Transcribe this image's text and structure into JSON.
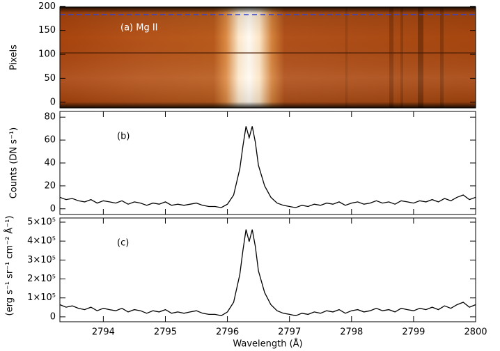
{
  "chart_data": [
    {
      "type": "image",
      "ylabel": "Pixels",
      "annotation": "(a) Mg II",
      "ylim": [
        -12,
        199
      ],
      "yticks": [
        0,
        50,
        100,
        150,
        200
      ],
      "reference_line": {
        "y": 183,
        "color": "#3344cc"
      }
    },
    {
      "type": "line",
      "ylabel": "Counts (DN s⁻¹)",
      "annotation": "(b)",
      "color": "#000000",
      "xlim": [
        2793.3,
        2800
      ],
      "xticks": [
        2794,
        2795,
        2796,
        2797,
        2798,
        2799,
        2800
      ],
      "xtick_labels": false,
      "ylim": [
        -5,
        85
      ],
      "yticks": [
        0,
        20,
        40,
        60,
        80
      ],
      "x": [
        2793.3,
        2793.4,
        2793.5,
        2793.6,
        2793.7,
        2793.8,
        2793.9,
        2794.0,
        2794.1,
        2794.2,
        2794.3,
        2794.4,
        2794.5,
        2794.6,
        2794.7,
        2794.8,
        2794.9,
        2795.0,
        2795.1,
        2795.2,
        2795.3,
        2795.4,
        2795.5,
        2795.6,
        2795.7,
        2795.8,
        2795.9,
        2796.0,
        2796.1,
        2796.2,
        2796.25,
        2796.3,
        2796.35,
        2796.4,
        2796.45,
        2796.5,
        2796.6,
        2796.7,
        2796.8,
        2796.9,
        2797.0,
        2797.1,
        2797.2,
        2797.3,
        2797.4,
        2797.5,
        2797.6,
        2797.7,
        2797.8,
        2797.9,
        2798.0,
        2798.1,
        2798.2,
        2798.3,
        2798.4,
        2798.5,
        2798.6,
        2798.7,
        2798.8,
        2798.9,
        2799.0,
        2799.1,
        2799.2,
        2799.3,
        2799.4,
        2799.5,
        2799.6,
        2799.7,
        2799.8,
        2799.9,
        2800.0
      ],
      "values": [
        10,
        8,
        9,
        7,
        6,
        8,
        5,
        7,
        6,
        5,
        7,
        4,
        6,
        5,
        3,
        5,
        4,
        6,
        3,
        4,
        3,
        4,
        5,
        3,
        2,
        2,
        1,
        4,
        12,
        35,
        55,
        72,
        62,
        72,
        58,
        38,
        20,
        10,
        5,
        3,
        2,
        1,
        3,
        2,
        4,
        3,
        5,
        4,
        6,
        3,
        5,
        6,
        4,
        5,
        7,
        5,
        6,
        4,
        7,
        6,
        5,
        7,
        6,
        8,
        6,
        9,
        7,
        10,
        12,
        8,
        10
      ]
    },
    {
      "type": "line",
      "ylabel": "(erg s⁻¹ sr⁻¹ cm⁻² Å⁻¹)",
      "xlabel": "Wavelength (Å)",
      "annotation": "(c)",
      "color": "#000000",
      "xlim": [
        2793.3,
        2800
      ],
      "xticks": [
        2794,
        2795,
        2796,
        2797,
        2798,
        2799,
        2800
      ],
      "xtick_labels": true,
      "ylim": [
        -26000,
        522000
      ],
      "yticks": [
        0,
        {
          "value": 100000,
          "label": "1×10⁵"
        },
        {
          "value": 200000,
          "label": "2×10⁵"
        },
        {
          "value": 300000,
          "label": "3×10⁵"
        },
        {
          "value": 400000,
          "label": "4×10⁵"
        },
        {
          "value": 500000,
          "label": "5×10⁵"
        }
      ],
      "x": [
        2793.3,
        2793.4,
        2793.5,
        2793.6,
        2793.7,
        2793.8,
        2793.9,
        2794.0,
        2794.1,
        2794.2,
        2794.3,
        2794.4,
        2794.5,
        2794.6,
        2794.7,
        2794.8,
        2794.9,
        2795.0,
        2795.1,
        2795.2,
        2795.3,
        2795.4,
        2795.5,
        2795.6,
        2795.7,
        2795.8,
        2795.9,
        2796.0,
        2796.1,
        2796.2,
        2796.25,
        2796.3,
        2796.35,
        2796.4,
        2796.45,
        2796.5,
        2796.6,
        2796.7,
        2796.8,
        2796.9,
        2797.0,
        2797.1,
        2797.2,
        2797.3,
        2797.4,
        2797.5,
        2797.6,
        2797.7,
        2797.8,
        2797.9,
        2798.0,
        2798.1,
        2798.2,
        2798.3,
        2798.4,
        2798.5,
        2798.6,
        2798.7,
        2798.8,
        2798.9,
        2799.0,
        2799.1,
        2799.2,
        2799.3,
        2799.4,
        2799.5,
        2799.6,
        2799.7,
        2799.8,
        2799.9,
        2800.0
      ],
      "values": [
        64000,
        51000,
        58000,
        45000,
        38000,
        51000,
        32000,
        45000,
        38000,
        32000,
        45000,
        26000,
        38000,
        32000,
        19000,
        32000,
        26000,
        38000,
        19000,
        26000,
        19000,
        26000,
        32000,
        19000,
        13000,
        13000,
        6000,
        26000,
        77000,
        224000,
        352000,
        461000,
        397000,
        461000,
        371000,
        243000,
        128000,
        64000,
        32000,
        19000,
        13000,
        6000,
        19000,
        13000,
        26000,
        19000,
        32000,
        26000,
        38000,
        19000,
        32000,
        38000,
        26000,
        32000,
        45000,
        32000,
        38000,
        26000,
        45000,
        38000,
        32000,
        45000,
        38000,
        51000,
        38000,
        58000,
        45000,
        64000,
        77000,
        51000,
        64000
      ]
    }
  ]
}
